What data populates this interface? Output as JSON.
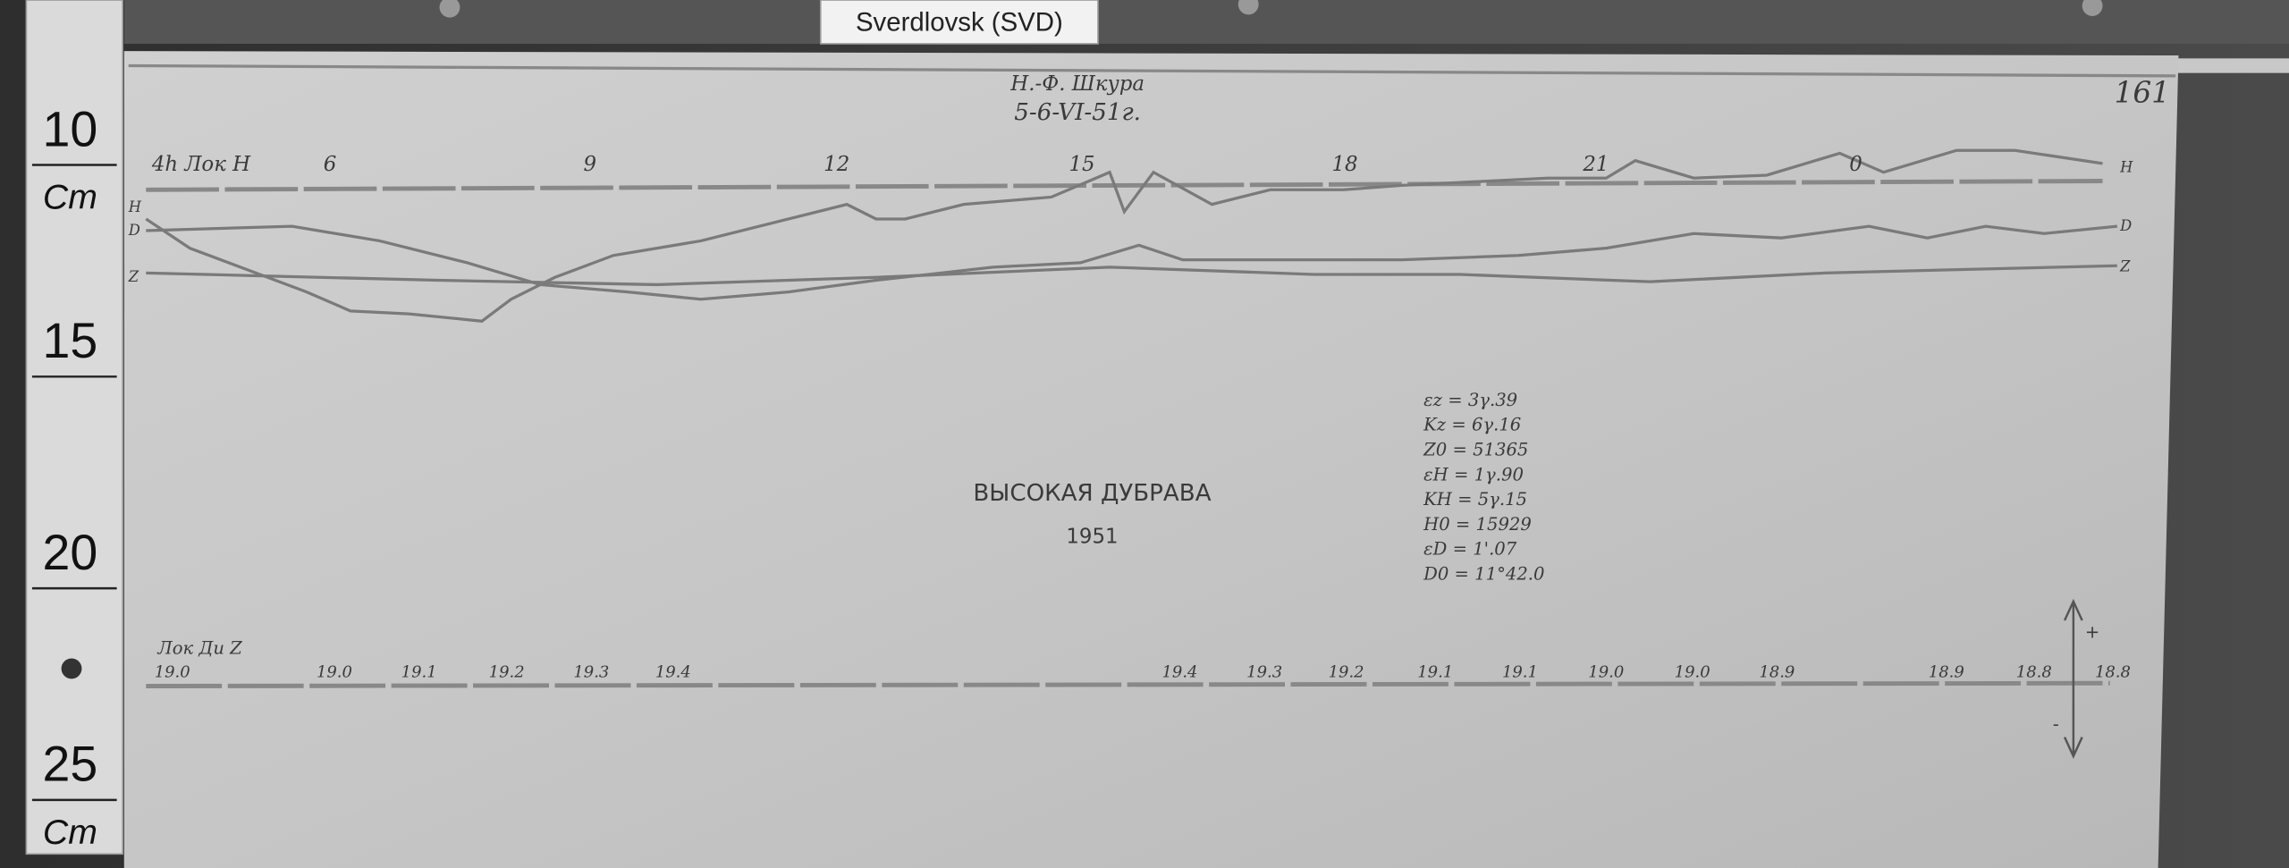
{
  "label": "Sverdlovsk (SVD)",
  "ruler": {
    "marks": [
      "10",
      "15",
      "20",
      "25"
    ],
    "units": [
      "Cm",
      "Cm"
    ]
  },
  "magnetogram": {
    "page_number": "161",
    "observer": "Н.-Ф. Шкура",
    "date": "5-6-VI-51г.",
    "hour_axis_label": "4h Лок H",
    "hours": [
      "6",
      "9",
      "12",
      "15",
      "18",
      "21",
      "0"
    ],
    "trace_labels_left": [
      "H",
      "D",
      "Z"
    ],
    "trace_labels_right": [
      "H",
      "D",
      "Z"
    ],
    "station": "ВЫСОКАЯ ДУБРАВА",
    "year": "1951",
    "constants": [
      "εz = 3γ.39",
      "Kz = 6γ.16",
      "Z0 = 51365",
      "εH = 1γ.90",
      "KH = 5γ.15",
      "H0 = 15929",
      "εD = 1'.07",
      "D0 = 11°42.0"
    ],
    "temperature_label": "Лок Ди Z",
    "temperatures": [
      "19.0",
      "19.0",
      "19.1",
      "19.2",
      "19.3",
      "19.4",
      "19.4",
      "19.3",
      "19.2",
      "19.1",
      "19.1",
      "19.0",
      "19.0",
      "18.9",
      "18.9",
      "18.8",
      "18.8"
    ],
    "arrow": {
      "plus": "+",
      "minus": "-"
    }
  }
}
